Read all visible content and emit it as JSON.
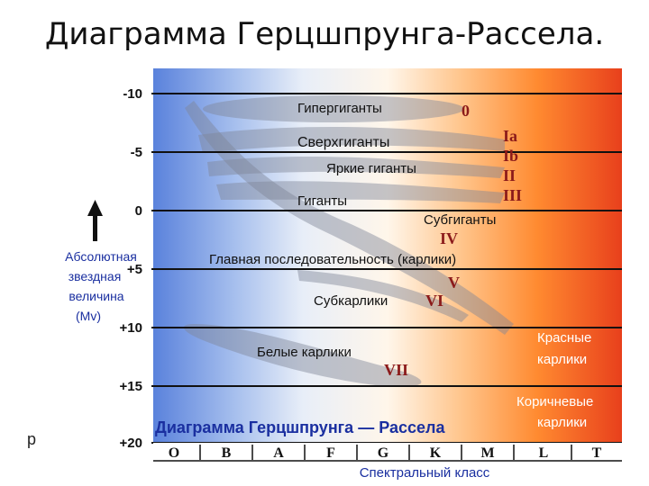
{
  "slide_title": "Диаграмма Герцшпрунга-Рассела.",
  "stray_text": "р",
  "y_axis": {
    "ticks": [
      "-10",
      "-5",
      "0",
      "+5",
      "+10",
      "+15",
      "+20"
    ],
    "label_lines": [
      "Абсолютная",
      "звездная",
      "величина",
      "(Mv)"
    ]
  },
  "x_axis": {
    "classes": [
      "O",
      "B",
      "A",
      "F",
      "G",
      "K",
      "M",
      "L",
      "T"
    ],
    "label": "Спектральный класс"
  },
  "chart_title": "Диаграмма Герцшпрунга — Рассела",
  "regions": {
    "hypergiants": "Гипергиганты",
    "supergiants": "Сверхгиганты",
    "bright_giants": "Яркие гиганты",
    "giants": "Гиганты",
    "subgiants": "Субгиганты",
    "main_sequence": "Главная последовательность (карлики)",
    "subdwarfs": "Субкарлики",
    "white_dwarfs": "Белые карлики",
    "red_dwarfs_lines": [
      "Красные",
      "карлики"
    ],
    "brown_dwarfs_lines": [
      "Коричневые",
      "карлики"
    ]
  },
  "luminosity_classes": {
    "c0": "0",
    "c_ia": "Ia",
    "c_ib": "Ib",
    "c_ii": "II",
    "c_iii": "III",
    "c_iv": "IV",
    "c_v": "V",
    "c_vi": "VI",
    "c_vii": "VII"
  },
  "colors": {
    "blue": "#5a82dc",
    "orange": "#ff7a20",
    "red": "#e8401c",
    "roman": "#8b1a1a",
    "title_blue": "#1a2fa0",
    "line": "#111111"
  }
}
